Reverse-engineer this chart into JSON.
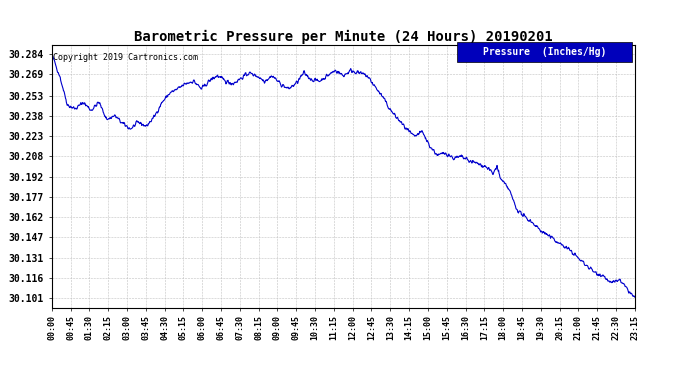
{
  "title": "Barometric Pressure per Minute (24 Hours) 20190201",
  "copyright_text": "Copyright 2019 Cartronics.com",
  "legend_label": "Pressure  (Inches/Hg)",
  "line_color": "#0000cc",
  "background_color": "#ffffff",
  "grid_color": "#bbbbbb",
  "legend_bg_color": "#0000bb",
  "legend_text_color": "#ffffff",
  "yticks": [
    30.101,
    30.116,
    30.131,
    30.147,
    30.162,
    30.177,
    30.192,
    30.208,
    30.223,
    30.238,
    30.253,
    30.269,
    30.284
  ],
  "ylim": [
    30.094,
    30.291
  ],
  "xtick_labels": [
    "00:00",
    "00:45",
    "01:30",
    "02:15",
    "03:00",
    "03:45",
    "04:30",
    "05:15",
    "06:00",
    "06:45",
    "07:30",
    "08:15",
    "09:00",
    "09:45",
    "10:30",
    "11:15",
    "12:00",
    "12:45",
    "13:30",
    "14:15",
    "15:00",
    "15:45",
    "16:30",
    "17:15",
    "18:00",
    "18:45",
    "19:30",
    "20:15",
    "21:00",
    "21:45",
    "22:30",
    "23:15"
  ],
  "pressure_keypoints": [
    [
      0,
      30.284
    ],
    [
      10,
      30.268
    ],
    [
      20,
      30.246
    ],
    [
      30,
      30.243
    ],
    [
      40,
      30.248
    ],
    [
      50,
      30.242
    ],
    [
      60,
      30.248
    ],
    [
      70,
      30.235
    ],
    [
      80,
      30.238
    ],
    [
      90,
      30.232
    ],
    [
      100,
      30.228
    ],
    [
      110,
      30.233
    ],
    [
      120,
      30.23
    ],
    [
      130,
      30.237
    ],
    [
      140,
      30.248
    ],
    [
      150,
      30.255
    ],
    [
      160,
      30.258
    ],
    [
      170,
      30.262
    ],
    [
      180,
      30.264
    ],
    [
      190,
      30.258
    ],
    [
      200,
      30.264
    ],
    [
      210,
      30.268
    ],
    [
      220,
      30.264
    ],
    [
      230,
      30.262
    ],
    [
      240,
      30.266
    ],
    [
      250,
      30.27
    ],
    [
      260,
      30.268
    ],
    [
      270,
      30.264
    ],
    [
      280,
      30.268
    ],
    [
      290,
      30.262
    ],
    [
      300,
      30.258
    ],
    [
      310,
      30.262
    ],
    [
      320,
      30.27
    ],
    [
      330,
      30.265
    ],
    [
      340,
      30.264
    ],
    [
      350,
      30.268
    ],
    [
      360,
      30.272
    ],
    [
      370,
      30.268
    ],
    [
      380,
      30.272
    ],
    [
      390,
      30.27
    ],
    [
      400,
      30.268
    ],
    [
      410,
      30.26
    ],
    [
      420,
      30.252
    ],
    [
      430,
      30.242
    ],
    [
      440,
      30.235
    ],
    [
      450,
      30.228
    ],
    [
      460,
      30.222
    ],
    [
      470,
      30.226
    ],
    [
      480,
      30.215
    ],
    [
      490,
      30.208
    ],
    [
      500,
      30.21
    ],
    [
      510,
      30.206
    ],
    [
      520,
      30.207
    ],
    [
      530,
      30.204
    ],
    [
      540,
      30.202
    ],
    [
      550,
      30.2
    ],
    [
      555,
      30.198
    ],
    [
      560,
      30.194
    ],
    [
      565,
      30.2
    ],
    [
      570,
      30.19
    ],
    [
      580,
      30.183
    ],
    [
      590,
      30.168
    ],
    [
      600,
      30.162
    ],
    [
      610,
      30.158
    ],
    [
      620,
      30.152
    ],
    [
      630,
      30.148
    ],
    [
      640,
      30.144
    ],
    [
      650,
      30.14
    ],
    [
      660,
      30.136
    ],
    [
      670,
      30.13
    ],
    [
      680,
      30.125
    ],
    [
      690,
      30.12
    ],
    [
      700,
      30.118
    ],
    [
      710,
      30.112
    ],
    [
      720,
      30.115
    ],
    [
      730,
      30.108
    ],
    [
      740,
      30.101
    ]
  ]
}
